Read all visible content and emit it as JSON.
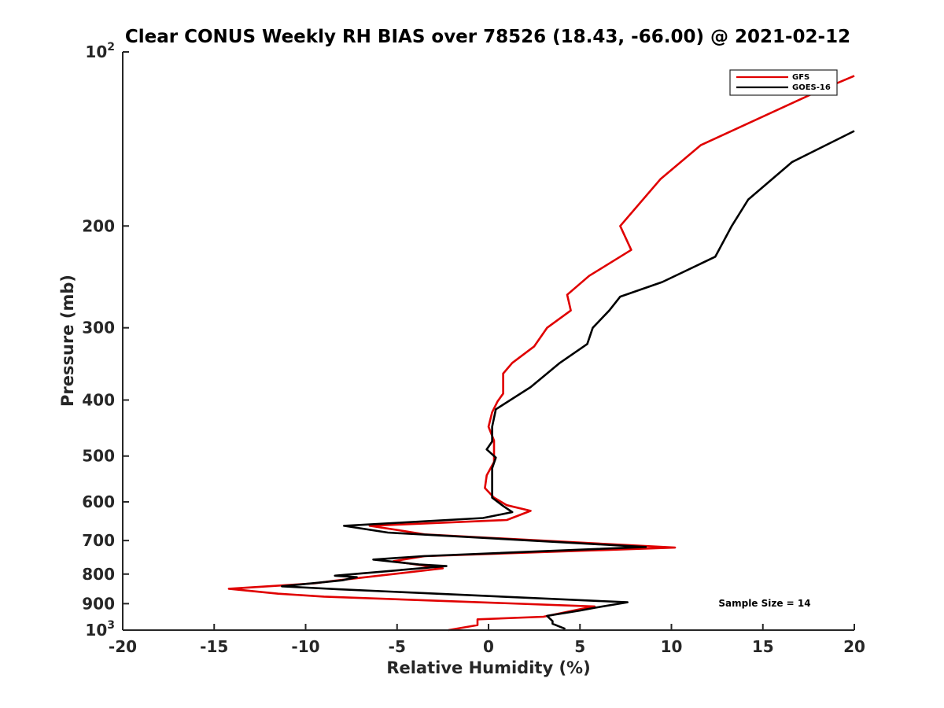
{
  "chart_data": {
    "type": "line",
    "title": "Clear CONUS Weekly RH BIAS over 78526 (18.43, -66.00) @ 2021-02-12",
    "xlabel": "Relative Humidity (%)",
    "ylabel": "Pressure (mb)",
    "xlim": [
      -20,
      20
    ],
    "ylim": [
      100,
      1000
    ],
    "yscale": "log",
    "y_reversed": true,
    "x_ticks": [
      -20,
      -15,
      -10,
      -5,
      0,
      5,
      10,
      15,
      20
    ],
    "x_tick_labels": [
      "-20",
      "-15",
      "-10",
      "-5",
      "0",
      "5",
      "10",
      "15",
      "20"
    ],
    "y_ticks": [
      {
        "value": 100,
        "base": "10",
        "exp": "2"
      },
      {
        "value": 200,
        "label": "200"
      },
      {
        "value": 300,
        "label": "300"
      },
      {
        "value": 400,
        "label": "400"
      },
      {
        "value": 500,
        "label": "500"
      },
      {
        "value": 600,
        "label": "600"
      },
      {
        "value": 700,
        "label": "700"
      },
      {
        "value": 800,
        "label": "800"
      },
      {
        "value": 900,
        "label": "900"
      },
      {
        "value": 1000,
        "base": "10",
        "exp": "3"
      }
    ],
    "grid": false,
    "legend_position": "top-right",
    "annotation": "Sample Size = 14",
    "series": [
      {
        "name": "GFS",
        "color": "#e00000",
        "points": [
          [
            20.0,
            110
          ],
          [
            18.0,
            117
          ],
          [
            11.6,
            145
          ],
          [
            9.4,
            166
          ],
          [
            7.2,
            200
          ],
          [
            7.8,
            220
          ],
          [
            5.5,
            244
          ],
          [
            4.3,
            263
          ],
          [
            4.5,
            280
          ],
          [
            3.2,
            300
          ],
          [
            2.5,
            323
          ],
          [
            1.3,
            345
          ],
          [
            0.8,
            360
          ],
          [
            0.8,
            390
          ],
          [
            0.5,
            402
          ],
          [
            0.2,
            420
          ],
          [
            0.0,
            445
          ],
          [
            0.3,
            470
          ],
          [
            0.3,
            492
          ],
          [
            0.3,
            512
          ],
          [
            -0.1,
            540
          ],
          [
            -0.2,
            568
          ],
          [
            0.3,
            590
          ],
          [
            1.0,
            608
          ],
          [
            2.3,
            622
          ],
          [
            1.0,
            645
          ],
          [
            -6.5,
            660
          ],
          [
            -4.5,
            675
          ],
          [
            -3.5,
            683
          ],
          [
            10.2,
            720
          ],
          [
            -3.5,
            745
          ],
          [
            -5.2,
            760
          ],
          [
            -2.5,
            782
          ],
          [
            -8.5,
            822
          ],
          [
            -9.5,
            830
          ],
          [
            -14.2,
            848
          ],
          [
            -11.5,
            865
          ],
          [
            -9.0,
            875
          ],
          [
            5.8,
            910
          ],
          [
            5.0,
            920
          ],
          [
            3.0,
            948
          ],
          [
            -0.6,
            958
          ],
          [
            -0.6,
            980
          ],
          [
            -2.2,
            1000
          ]
        ]
      },
      {
        "name": "GOES-16",
        "color": "#000000",
        "points": [
          [
            20.0,
            137
          ],
          [
            16.6,
            155
          ],
          [
            14.2,
            180
          ],
          [
            13.3,
            200
          ],
          [
            12.4,
            226
          ],
          [
            9.5,
            250
          ],
          [
            7.2,
            265
          ],
          [
            6.6,
            280
          ],
          [
            5.7,
            300
          ],
          [
            5.4,
            320
          ],
          [
            3.9,
            345
          ],
          [
            2.3,
            380
          ],
          [
            0.4,
            415
          ],
          [
            0.2,
            445
          ],
          [
            0.2,
            472
          ],
          [
            -0.1,
            487
          ],
          [
            0.4,
            503
          ],
          [
            0.2,
            525
          ],
          [
            0.2,
            560
          ],
          [
            0.2,
            590
          ],
          [
            0.8,
            610
          ],
          [
            1.3,
            625
          ],
          [
            -0.3,
            640
          ],
          [
            -7.9,
            660
          ],
          [
            -5.5,
            678
          ],
          [
            8.6,
            718
          ],
          [
            -3.6,
            745
          ],
          [
            -6.3,
            755
          ],
          [
            -3.8,
            770
          ],
          [
            -2.3,
            775
          ],
          [
            -8.4,
            805
          ],
          [
            -7.2,
            810
          ],
          [
            -8.0,
            820
          ],
          [
            -11.3,
            840
          ],
          [
            -8.2,
            850
          ],
          [
            7.6,
            895
          ],
          [
            5.8,
            915
          ],
          [
            5.0,
            925
          ],
          [
            3.2,
            945
          ],
          [
            3.5,
            965
          ],
          [
            3.5,
            975
          ],
          [
            4.2,
            995
          ]
        ]
      }
    ]
  }
}
